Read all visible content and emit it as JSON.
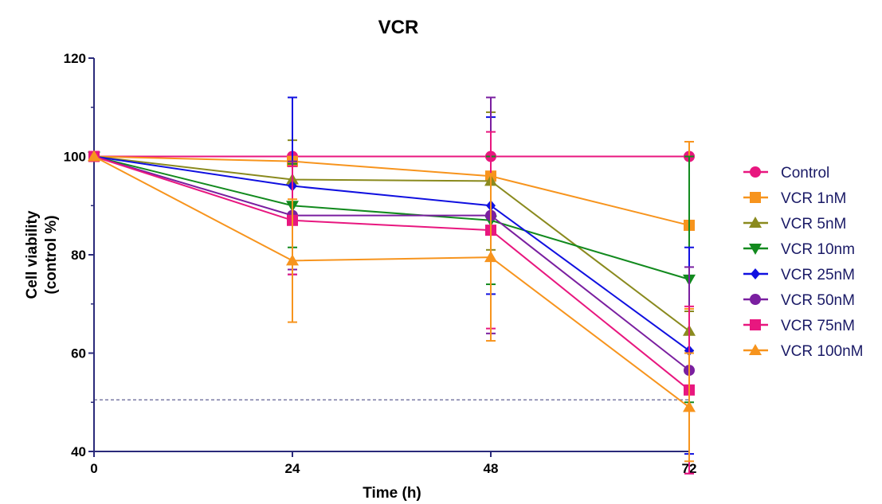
{
  "chart_data": {
    "type": "line",
    "title": "VCR",
    "xlabel": "Time (h)",
    "ylabel": "Cell viability (control %)",
    "ylabel_lines": [
      "Cell viability",
      "(control %)"
    ],
    "x": [
      0,
      24,
      48,
      72
    ],
    "x_ticks": [
      "0",
      "24",
      "48",
      "72"
    ],
    "xlim": [
      0,
      72
    ],
    "ylim": [
      40,
      120
    ],
    "y_ticks": [
      "40",
      "60",
      "80",
      "100",
      "120"
    ],
    "grid": false,
    "legend_position": "right",
    "reference_line": {
      "y": 50.5,
      "style": "dashed"
    },
    "axis_color": "#2a2a7a",
    "series": [
      {
        "name": "Control",
        "color": "#e8177f",
        "marker": "circle",
        "values": [
          100,
          100,
          100,
          100
        ],
        "error": [
          0,
          0,
          0,
          0
        ]
      },
      {
        "name": "VCR 1nM",
        "color": "#f7941d",
        "marker": "square",
        "values": [
          100,
          99,
          96,
          86
        ],
        "error": [
          0,
          0,
          0,
          17
        ]
      },
      {
        "name": "VCR 5nM",
        "color": "#8a8a1e",
        "marker": "triangle-up",
        "values": [
          100,
          95.3,
          95,
          64.5
        ],
        "error": [
          0,
          8,
          14,
          4
        ]
      },
      {
        "name": "VCR 10nm",
        "color": "#128a1e",
        "marker": "triangle-down",
        "values": [
          100,
          90,
          87,
          75
        ],
        "error": [
          0,
          8.5,
          13,
          25
        ]
      },
      {
        "name": "VCR 25nM",
        "color": "#1010e0",
        "marker": "diamond",
        "values": [
          100,
          94,
          90,
          60.5
        ],
        "error": [
          0,
          18,
          18,
          21
        ]
      },
      {
        "name": "VCR 50nM",
        "color": "#7a1fa0",
        "marker": "circle",
        "values": [
          100,
          88,
          88,
          56.5
        ],
        "error": [
          0,
          11,
          24,
          21
        ]
      },
      {
        "name": "VCR 75nM",
        "color": "#e8177f",
        "marker": "square",
        "values": [
          100,
          87,
          85,
          52.5
        ],
        "error": [
          0,
          11,
          20,
          17
        ]
      },
      {
        "name": "VCR 100nM",
        "color": "#f7941d",
        "marker": "triangle-up",
        "values": [
          100,
          78.8,
          79.5,
          49
        ],
        "error": [
          0,
          12.5,
          17,
          11
        ]
      }
    ]
  }
}
